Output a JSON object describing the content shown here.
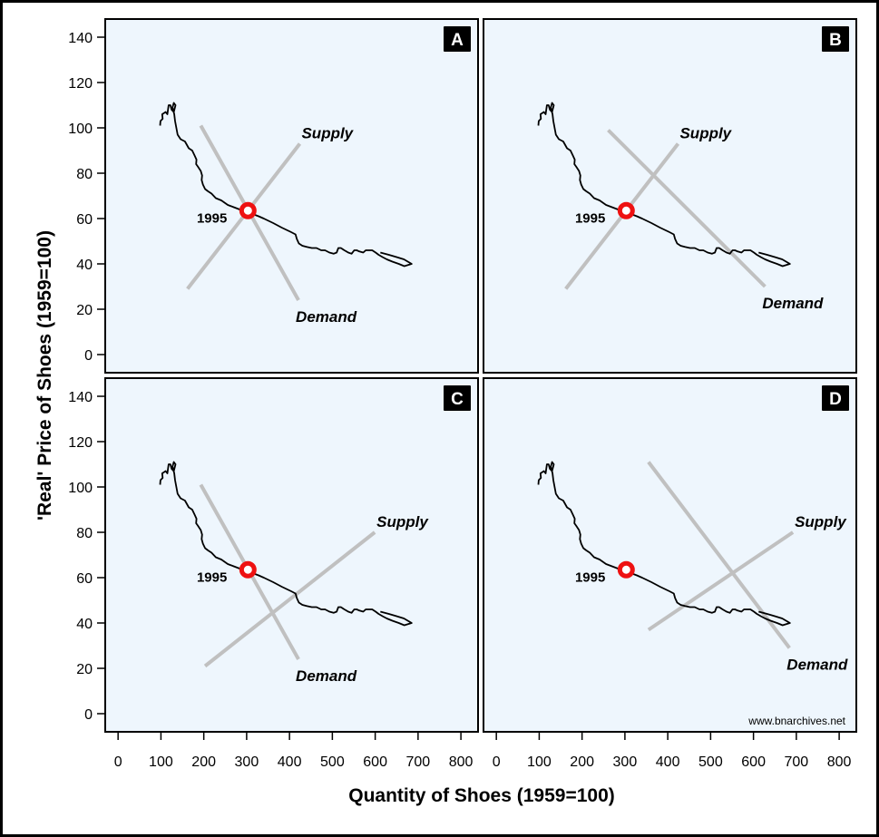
{
  "chart_data": {
    "type": "line",
    "xlabel": "Quantity of Shoes (1959=100)",
    "ylabel": "'Real' Price of Shoes (1959=100)",
    "xlim": [
      -30,
      840
    ],
    "ylim": [
      -8,
      148
    ],
    "x_ticks": [
      "0",
      "100",
      "200",
      "300",
      "400",
      "500",
      "600",
      "700",
      "800"
    ],
    "y_ticks": [
      "0",
      "20",
      "40",
      "60",
      "80",
      "100",
      "120",
      "140"
    ],
    "watermark": "www.bnarchives.net",
    "colors": {
      "panel_bg": "#eef6fd",
      "curve": "#000000",
      "line": "#c0c0c0",
      "marker": "#ee1111"
    },
    "history": [
      [
        98,
        101
      ],
      [
        99,
        103
      ],
      [
        104,
        104
      ],
      [
        103,
        106
      ],
      [
        111,
        107
      ],
      [
        115,
        106
      ],
      [
        118,
        110
      ],
      [
        122,
        110
      ],
      [
        125,
        108
      ],
      [
        130,
        107
      ],
      [
        134,
        110
      ],
      [
        130,
        111
      ],
      [
        127,
        109
      ],
      [
        131,
        106
      ],
      [
        133,
        103
      ],
      [
        136,
        100
      ],
      [
        139,
        97
      ],
      [
        146,
        95
      ],
      [
        156,
        94
      ],
      [
        165,
        91
      ],
      [
        173,
        90
      ],
      [
        178,
        88
      ],
      [
        183,
        86
      ],
      [
        182,
        84
      ],
      [
        186,
        83
      ],
      [
        193,
        81
      ],
      [
        196,
        79
      ],
      [
        195,
        77
      ],
      [
        198,
        75
      ],
      [
        203,
        73
      ],
      [
        210,
        72
      ],
      [
        218,
        71
      ],
      [
        228,
        69
      ],
      [
        241,
        68
      ],
      [
        256,
        66
      ],
      [
        270,
        65
      ],
      [
        284,
        64
      ],
      [
        299,
        63
      ],
      [
        314,
        62
      ],
      [
        328,
        61
      ],
      [
        340,
        60
      ],
      [
        351,
        59
      ],
      [
        362,
        58
      ],
      [
        372,
        57
      ],
      [
        382,
        56
      ],
      [
        393,
        55
      ],
      [
        404,
        54
      ],
      [
        414,
        53
      ],
      [
        417,
        51
      ],
      [
        422,
        49
      ],
      [
        430,
        48
      ],
      [
        440,
        47.5
      ],
      [
        452,
        47
      ],
      [
        463,
        47
      ],
      [
        474,
        46
      ],
      [
        483,
        46
      ],
      [
        493,
        45
      ],
      [
        503,
        44.5
      ],
      [
        510,
        45
      ],
      [
        514,
        47
      ],
      [
        520,
        47
      ],
      [
        528,
        46
      ],
      [
        537,
        45
      ],
      [
        545,
        44.5
      ],
      [
        551,
        46
      ],
      [
        557,
        46
      ],
      [
        563,
        45.5
      ],
      [
        572,
        45
      ],
      [
        578,
        46
      ],
      [
        585,
        46
      ],
      [
        593,
        46
      ],
      [
        601,
        45
      ],
      [
        608,
        44
      ],
      [
        617,
        43
      ],
      [
        627,
        42
      ],
      [
        640,
        41
      ],
      [
        655,
        40
      ],
      [
        668,
        39
      ],
      [
        685,
        40
      ],
      [
        667,
        42
      ],
      [
        650,
        43
      ],
      [
        632,
        44
      ],
      [
        612,
        45
      ]
    ],
    "panels": [
      {
        "label": "A",
        "year": "1995",
        "point": {
          "x": 303,
          "y": 63.5
        },
        "supply": {
          "name": "Supply",
          "from": [
            162,
            29
          ],
          "to": [
            424,
            93
          ]
        },
        "demand": {
          "name": "Demand",
          "from": [
            193,
            101
          ],
          "to": [
            421,
            24
          ]
        }
      },
      {
        "label": "B",
        "year": "1995",
        "point": {
          "x": 303,
          "y": 63.5
        },
        "supply": {
          "name": "Supply",
          "from": [
            162,
            29
          ],
          "to": [
            424,
            93
          ]
        },
        "demand": {
          "name": "Demand",
          "from": [
            261,
            99
          ],
          "to": [
            627,
            30
          ]
        }
      },
      {
        "label": "C",
        "year": "1995",
        "point": {
          "x": 303,
          "y": 63.5
        },
        "supply": {
          "name": "Supply",
          "from": [
            203,
            21
          ],
          "to": [
            599,
            80
          ]
        },
        "demand": {
          "name": "Demand",
          "from": [
            193,
            101
          ],
          "to": [
            421,
            24
          ]
        }
      },
      {
        "label": "D",
        "year": "1995",
        "point": {
          "x": 303,
          "y": 63.5
        },
        "supply": {
          "name": "Supply",
          "from": [
            355,
            37
          ],
          "to": [
            692,
            80
          ]
        },
        "demand": {
          "name": "Demand",
          "from": [
            355,
            111
          ],
          "to": [
            684,
            29
          ]
        }
      }
    ]
  }
}
